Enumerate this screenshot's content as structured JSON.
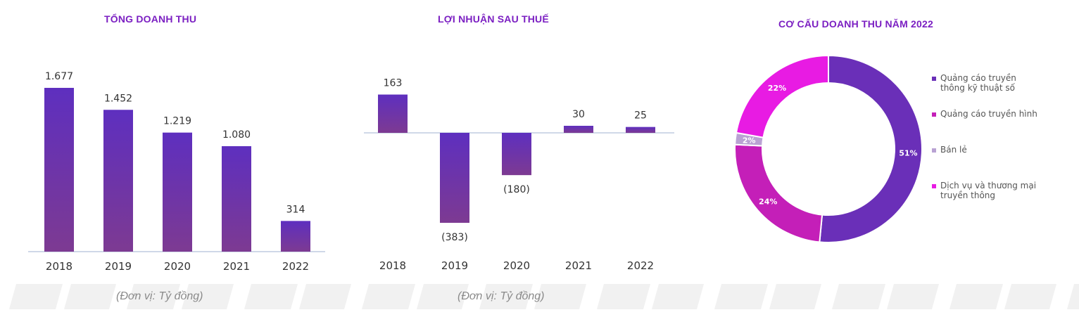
{
  "theme": {
    "title_color": "#7b1fc2",
    "bar_top": "#5e2fbf",
    "bar_bottom": "#7d3a92",
    "axis_color": "#cfd8e8",
    "unit_color": "#8a8a8a",
    "stripe_color": "#f1f1f1"
  },
  "unit_label": "(Đơn vị: Tỷ đồng)",
  "chart_data": [
    {
      "type": "bar",
      "title": "TỔNG DOANH THU",
      "categories": [
        "2018",
        "2019",
        "2020",
        "2021",
        "2022"
      ],
      "values": [
        1677,
        1452,
        1219,
        1080,
        314
      ],
      "value_labels": [
        "1.677",
        "1.452",
        "1.219",
        "1.080",
        "314"
      ],
      "ylim": [
        0,
        1677
      ]
    },
    {
      "type": "bar",
      "title": "LỢI NHUẬN SAU THUẾ",
      "categories": [
        "2018",
        "2019",
        "2020",
        "2021",
        "2022"
      ],
      "values": [
        163,
        -383,
        -180,
        30,
        25
      ],
      "value_labels": [
        "163",
        "(383)",
        "(180)",
        "30",
        "25"
      ],
      "ylim": [
        -383,
        163
      ]
    },
    {
      "type": "pie",
      "title": "CƠ CẤU DOANH THU NĂM 2022",
      "categories": [
        "Quảng cáo truyền thông kỹ thuật số",
        "Quảng cáo truyền hình",
        "Bán lẻ",
        "Dịch vụ và thương mại truyền thông"
      ],
      "values": [
        51,
        24,
        2,
        22
      ],
      "value_labels": [
        "51%",
        "24%",
        "2%",
        "22%"
      ],
      "colors": [
        "#6a2fb8",
        "#c41fb8",
        "#b9a2d3",
        "#e81be3"
      ],
      "legend_position": "right"
    }
  ]
}
